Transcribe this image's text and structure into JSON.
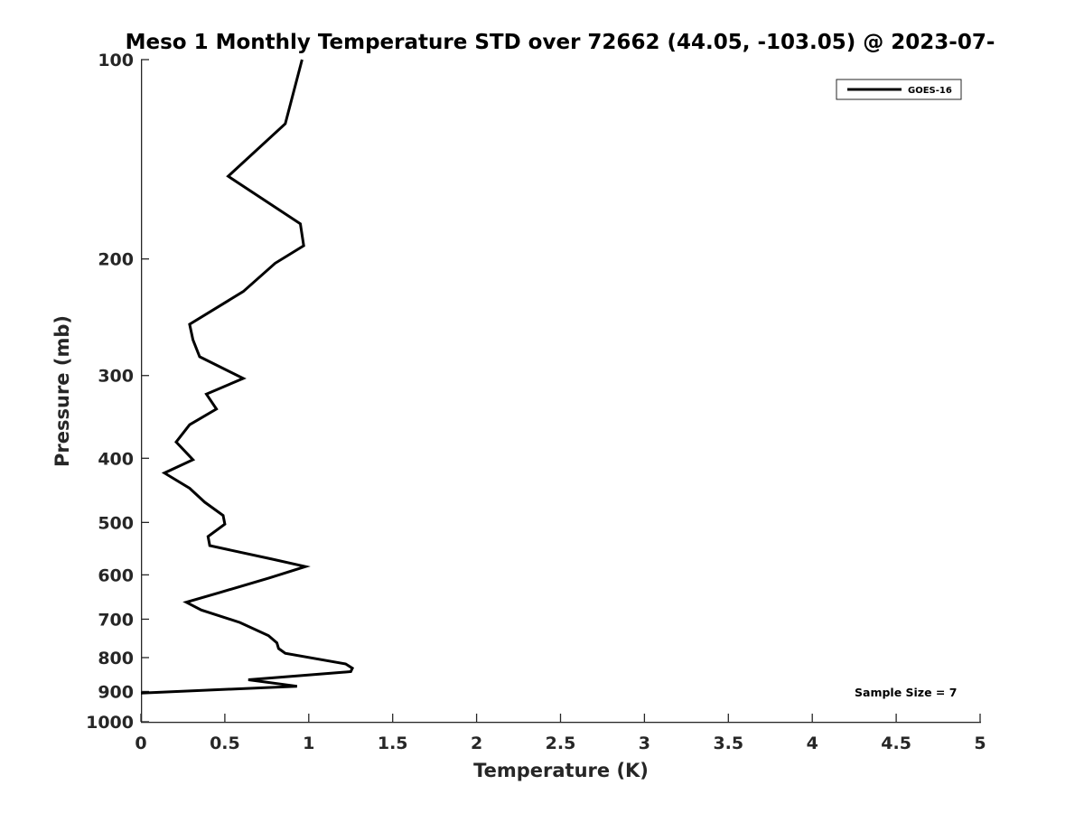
{
  "chart_data": {
    "type": "line",
    "title": "Meso 1 Monthly Temperature STD over 72662 (44.05, -103.05) @ 2023-07-",
    "xlabel": "Temperature (K)",
    "ylabel": "Pressure (mb)",
    "xlim": [
      0,
      5
    ],
    "ylim": [
      100,
      1000
    ],
    "y_scale": "log",
    "y_reversed": true,
    "x_ticks": [
      {
        "value": 0,
        "label": "0"
      },
      {
        "value": 0.5,
        "label": "0.5"
      },
      {
        "value": 1,
        "label": "1"
      },
      {
        "value": 1.5,
        "label": "1.5"
      },
      {
        "value": 2,
        "label": "2"
      },
      {
        "value": 2.5,
        "label": "2.5"
      },
      {
        "value": 3,
        "label": "3"
      },
      {
        "value": 3.5,
        "label": "3.5"
      },
      {
        "value": 4,
        "label": "4"
      },
      {
        "value": 4.5,
        "label": "4.5"
      },
      {
        "value": 5,
        "label": "5"
      }
    ],
    "y_ticks": [
      {
        "value": 100,
        "label": "100"
      },
      {
        "value": 200,
        "label": "200"
      },
      {
        "value": 300,
        "label": "300"
      },
      {
        "value": 400,
        "label": "400"
      },
      {
        "value": 500,
        "label": "500"
      },
      {
        "value": 600,
        "label": "600"
      },
      {
        "value": 700,
        "label": "700"
      },
      {
        "value": 800,
        "label": "800"
      },
      {
        "value": 900,
        "label": "900"
      },
      {
        "value": 1000,
        "label": "1000"
      }
    ],
    "grid": false,
    "legend_position": "top-right",
    "series": [
      {
        "name": "GOES-16",
        "color": "#000000",
        "points": [
          [
            0.96,
            100
          ],
          [
            0.86,
            125
          ],
          [
            0.52,
            150
          ],
          [
            0.95,
            177
          ],
          [
            0.97,
            191
          ],
          [
            0.8,
            203
          ],
          [
            0.61,
            224
          ],
          [
            0.29,
            251
          ],
          [
            0.31,
            265
          ],
          [
            0.35,
            281
          ],
          [
            0.61,
            303
          ],
          [
            0.39,
            320
          ],
          [
            0.45,
            337
          ],
          [
            0.29,
            356
          ],
          [
            0.21,
            378
          ],
          [
            0.31,
            402
          ],
          [
            0.14,
            421
          ],
          [
            0.29,
            444
          ],
          [
            0.38,
            466
          ],
          [
            0.49,
            488
          ],
          [
            0.5,
            503
          ],
          [
            0.4,
            525
          ],
          [
            0.41,
            542
          ],
          [
            0.78,
            568
          ],
          [
            0.98,
            583
          ],
          [
            0.76,
            607
          ],
          [
            0.47,
            638
          ],
          [
            0.27,
            660
          ],
          [
            0.36,
            678
          ],
          [
            0.59,
            708
          ],
          [
            0.76,
            741
          ],
          [
            0.81,
            760
          ],
          [
            0.82,
            775
          ],
          [
            0.86,
            788
          ],
          [
            1.22,
            818
          ],
          [
            1.26,
            830
          ],
          [
            1.25,
            840
          ],
          [
            0.64,
            864
          ],
          [
            0.93,
            884
          ],
          [
            0.0,
            905
          ]
        ]
      }
    ],
    "annotations": [
      "Sample Size = 7"
    ]
  }
}
